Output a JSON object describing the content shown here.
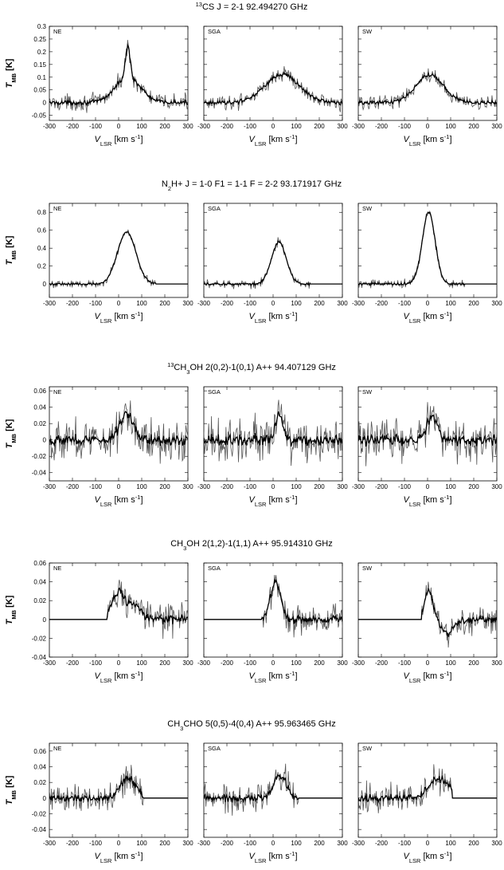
{
  "figure": {
    "rows": [
      {
        "title_prefix": "13",
        "title_mol": "CS",
        "title_sub": "",
        "title_rest": "",
        "title_trans": "J = 2-1",
        "title_freq": "92.494270 GHz",
        "ylim": [
          -0.07,
          0.3
        ],
        "yticks": [
          -0.05,
          0,
          0.05,
          0.1,
          0.15,
          0.2,
          0.25,
          0.3
        ],
        "ytick_labels": [
          "-0.05",
          "0",
          "0.05",
          "0.1",
          "0.15",
          "0.2",
          "0.25",
          "0.3"
        ]
      },
      {
        "title_prefix": "",
        "title_mol": "N",
        "title_sub": "2",
        "title_rest": "H+",
        "title_trans": "J = 1-0 F1 = 1-1 F = 2-2",
        "title_freq": "93.171917 GHz",
        "ylim": [
          -0.15,
          0.9
        ],
        "yticks": [
          0,
          0.2,
          0.4,
          0.6,
          0.8
        ],
        "ytick_labels": [
          "0",
          "0.2",
          "0.4",
          "0.6",
          "0.8"
        ]
      },
      {
        "title_prefix": "13",
        "title_mol": "CH",
        "title_sub": "3",
        "title_rest": "OH",
        "title_trans": "2(0,2)-1(0,1) A++",
        "title_freq": "94.407129 GHz",
        "ylim": [
          -0.05,
          0.065
        ],
        "yticks": [
          -0.04,
          -0.02,
          0,
          0.02,
          0.04,
          0.06
        ],
        "ytick_labels": [
          "-0.04",
          "-0.02",
          "0",
          "0.02",
          "0.04",
          "0.06"
        ]
      },
      {
        "title_prefix": "",
        "title_mol": "CH",
        "title_sub": "3",
        "title_rest": "OH",
        "title_trans": "2(1,2)-1(1,1) A++",
        "title_freq": "95.914310 GHz",
        "ylim": [
          -0.04,
          0.06
        ],
        "yticks": [
          -0.04,
          -0.02,
          0,
          0.02,
          0.04,
          0.06
        ],
        "ytick_labels": [
          "-0.04",
          "-0.02",
          "0",
          "0.02",
          "0.04",
          "0.06"
        ]
      },
      {
        "title_prefix": "",
        "title_mol": "CH",
        "title_sub": "3",
        "title_rest": "CHO",
        "title_trans": "5(0,5)-4(0,4) A++",
        "title_freq": "95.963465 GHz",
        "ylim": [
          -0.05,
          0.07
        ],
        "yticks": [
          -0.04,
          -0.02,
          0,
          0.02,
          0.04,
          0.06
        ],
        "ytick_labels": [
          "-0.04",
          "-0.02",
          "0",
          "0.02",
          "0.04",
          "0.06"
        ]
      }
    ],
    "panels": [
      "NE",
      "SGA",
      "SW"
    ],
    "x_ticks": [
      "-300",
      "-200",
      "-100",
      "0",
      "100",
      "200",
      "300"
    ],
    "ylabel_main": "T",
    "ylabel_sub": "MB",
    "ylabel_unit": " [K]",
    "xlabel_main": "V",
    "xlabel_sub": "LSR",
    "xlabel_unit": " [km s",
    "xlabel_exp": "-1",
    "xlabel_close": "]"
  },
  "colors": {
    "raw": "#555555",
    "fit": "#000000",
    "axis": "#000000"
  },
  "chart_data": [
    {
      "type": "line",
      "title": "13CS J = 2-1 92.494270 GHz",
      "xlabel": "VLSR [km s-1]",
      "ylabel": "TMB [K]",
      "xlim": [
        -300,
        300
      ],
      "ylim": [
        -0.07,
        0.3
      ],
      "series": [
        {
          "name": "NE",
          "components": [
            {
              "center": 40,
              "width": 55,
              "amp": 0.1
            },
            {
              "center": 40,
              "width": 10,
              "amp": 0.12
            }
          ],
          "noise": 0.022,
          "data_start": -300,
          "data_end": 300,
          "tail_amp": 0,
          "tail_end": 0
        },
        {
          "name": "SGA",
          "components": [
            {
              "center": 40,
              "width": 75,
              "amp": 0.11
            }
          ],
          "noise": 0.02,
          "data_start": -300,
          "data_end": 300,
          "tail_amp": 0,
          "tail_end": 0
        },
        {
          "name": "SW",
          "components": [
            {
              "center": 10,
              "width": 60,
              "amp": 0.11
            }
          ],
          "noise": 0.02,
          "data_start": -300,
          "data_end": 300,
          "tail_amp": 0,
          "tail_end": 0
        }
      ]
    },
    {
      "type": "line",
      "title": "N2H+ J = 1-0 F1 = 1-1 F = 2-2 93.171917 GHz",
      "xlabel": "VLSR [km s-1]",
      "ylabel": "TMB [K]",
      "xlim": [
        -300,
        300
      ],
      "ylim": [
        -0.15,
        0.9
      ],
      "series": [
        {
          "name": "NE",
          "components": [
            {
              "center": 35,
              "width": 40,
              "amp": 0.58
            }
          ],
          "noise": 0.03,
          "data_start": -300,
          "data_end": 160,
          "tail_amp": 0,
          "tail_end": 0
        },
        {
          "name": "SGA",
          "components": [
            {
              "center": 25,
              "width": 32,
              "amp": 0.47
            }
          ],
          "noise": 0.035,
          "data_start": -300,
          "data_end": 160,
          "tail_amp": 0,
          "tail_end": 0
        },
        {
          "name": "SW",
          "components": [
            {
              "center": 5,
              "width": 28,
              "amp": 0.8
            }
          ],
          "noise": 0.035,
          "data_start": -300,
          "data_end": 160,
          "tail_amp": 0,
          "tail_end": 0
        }
      ]
    },
    {
      "type": "line",
      "title": "13CH3OH 2(0,2)-1(0,1) A++ 94.407129 GHz",
      "xlabel": "VLSR [km s-1]",
      "ylabel": "TMB [K]",
      "xlim": [
        -300,
        300
      ],
      "ylim": [
        -0.05,
        0.065
      ],
      "series": [
        {
          "name": "NE",
          "components": [
            {
              "center": 35,
              "width": 30,
              "amp": 0.032
            }
          ],
          "noise": 0.018,
          "data_start": -300,
          "data_end": 300,
          "tail_amp": 0,
          "tail_end": 0
        },
        {
          "name": "SGA",
          "components": [
            {
              "center": 25,
              "width": 15,
              "amp": 0.03
            }
          ],
          "noise": 0.018,
          "data_start": -300,
          "data_end": 300,
          "tail_amp": 0,
          "tail_end": 0
        },
        {
          "name": "SW",
          "components": [
            {
              "center": 20,
              "width": 22,
              "amp": 0.028
            }
          ],
          "noise": 0.018,
          "data_start": -300,
          "data_end": 300,
          "tail_amp": 0,
          "tail_end": 0
        }
      ]
    },
    {
      "type": "line",
      "title": "CH3OH 2(1,2)-1(1,1) A++ 95.914310 GHz",
      "xlabel": "VLSR [km s-1]",
      "ylabel": "TMB [K]",
      "xlim": [
        -300,
        300
      ],
      "ylim": [
        -0.04,
        0.06
      ],
      "series": [
        {
          "name": "NE",
          "components": [
            {
              "center": 0,
              "width": 28,
              "amp": 0.03
            },
            {
              "center": 70,
              "width": 25,
              "amp": 0.015
            }
          ],
          "noise": 0.012,
          "data_start": -50,
          "data_end": 300,
          "tail_amp": 0,
          "tail_end": 0
        },
        {
          "name": "SGA",
          "components": [
            {
              "center": 10,
              "width": 22,
              "amp": 0.04
            }
          ],
          "noise": 0.012,
          "data_start": -50,
          "data_end": 300,
          "tail_amp": 0,
          "tail_end": 0
        },
        {
          "name": "SW",
          "components": [
            {
              "center": 5,
              "width": 18,
              "amp": 0.03
            },
            {
              "center": 85,
              "width": 25,
              "amp": -0.015
            }
          ],
          "noise": 0.01,
          "data_start": -25,
          "data_end": 300,
          "tail_amp": 0,
          "tail_end": 0
        }
      ]
    },
    {
      "type": "line",
      "title": "CH3CHO 5(0,5)-4(0,4) A++ 95.963465 GHz",
      "xlabel": "VLSR [km s-1]",
      "ylabel": "TMB [K]",
      "xlim": [
        -300,
        300
      ],
      "ylim": [
        -0.05,
        0.07
      ],
      "series": [
        {
          "name": "NE",
          "components": [
            {
              "center": 40,
              "width": 35,
              "amp": 0.025
            }
          ],
          "noise": 0.014,
          "data_start": -300,
          "data_end": 105,
          "tail_amp": 0.01,
          "tail_end": 0
        },
        {
          "name": "SGA",
          "components": [
            {
              "center": 30,
              "width": 25,
              "amp": 0.03
            }
          ],
          "noise": 0.013,
          "data_start": -300,
          "data_end": 110,
          "tail_amp": 0,
          "tail_end": 0
        },
        {
          "name": "SW",
          "components": [
            {
              "center": 50,
              "width": 45,
              "amp": 0.025
            }
          ],
          "noise": 0.013,
          "data_start": -300,
          "data_end": 105,
          "tail_amp": 0.01,
          "tail_end": 0
        }
      ]
    }
  ]
}
